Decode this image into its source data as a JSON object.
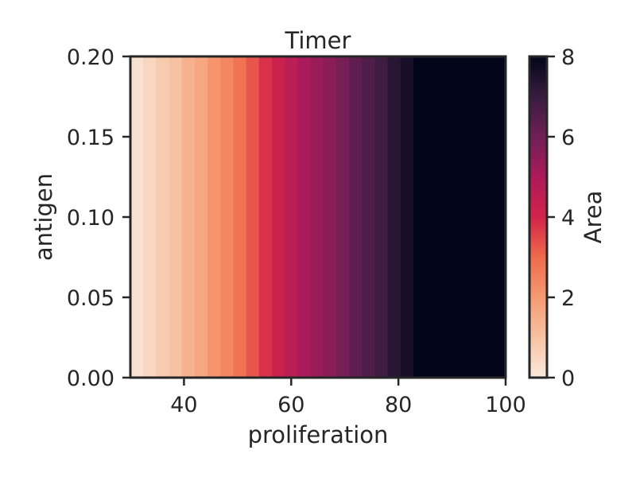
{
  "chart_data": {
    "type": "heatmap",
    "title": "Timer",
    "xlabel": "proliferation",
    "ylabel": "antigen",
    "colorbar_label": "Area",
    "xlim": [
      30,
      100
    ],
    "ylim": [
      0,
      0.2
    ],
    "clim": [
      0,
      8
    ],
    "x_ticks": [
      "40",
      "60",
      "80",
      "100"
    ],
    "y_ticks": [
      "0.00",
      "0.05",
      "0.10",
      "0.15",
      "0.20"
    ],
    "colorbar_ticks": [
      "0",
      "2",
      "4",
      "6",
      "8"
    ],
    "grid": false,
    "x_bin_edges": [
      30,
      32.4,
      34.8,
      37.2,
      39.6,
      42.0,
      44.4,
      46.8,
      49.2,
      51.6,
      54.0,
      56.4,
      58.8,
      61.2,
      63.6,
      66.0,
      68.4,
      70.8,
      73.2,
      75.6,
      78.0,
      80.4,
      82.8,
      100
    ],
    "values": [
      0.2,
      0.5,
      0.8,
      1.0,
      1.4,
      1.7,
      2.1,
      2.4,
      2.8,
      3.3,
      3.8,
      4.2,
      4.6,
      5.0,
      5.3,
      5.6,
      5.9,
      6.3,
      6.6,
      6.9,
      7.3,
      7.6,
      8.0
    ]
  }
}
